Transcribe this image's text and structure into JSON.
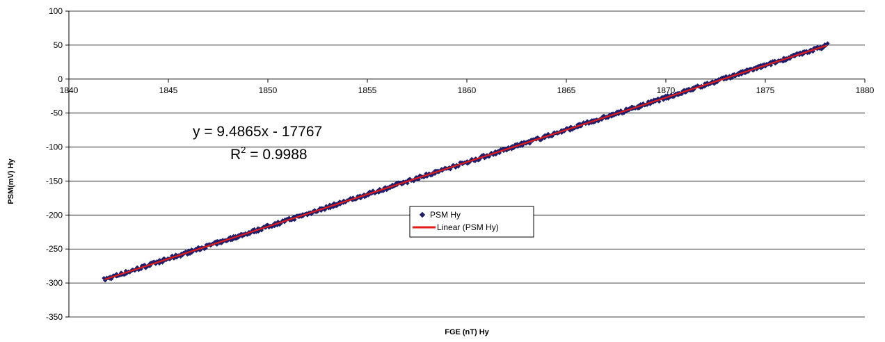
{
  "chart_data": {
    "type": "scatter",
    "xlabel": "FGE (nT) Hy",
    "ylabel": "PSM(mV) Hy",
    "xlim": [
      1840,
      1880
    ],
    "ylim": [
      -350,
      100
    ],
    "x_ticks": [
      "1840",
      "1845",
      "1850",
      "1855",
      "1860",
      "1865",
      "1870",
      "1875",
      "1880"
    ],
    "y_ticks": [
      "100",
      "50",
      "0",
      "-50",
      "-100",
      "-150",
      "-200",
      "-250",
      "-300",
      "-350"
    ],
    "grid": "horizontal",
    "series": [
      {
        "name": "PSM Hy",
        "kind": "points",
        "color": "#1f1f6e",
        "x_range": [
          1841.8,
          1878.1
        ],
        "approx_relation": "y ≈ 9.4865x - 17767",
        "sample_points": [
          {
            "x": 1841.8,
            "y": -295
          },
          {
            "x": 1845,
            "y": -265
          },
          {
            "x": 1850,
            "y": -218
          },
          {
            "x": 1855,
            "y": -170
          },
          {
            "x": 1860,
            "y": -123
          },
          {
            "x": 1865,
            "y": -75
          },
          {
            "x": 1870,
            "y": -28
          },
          {
            "x": 1875,
            "y": 20
          },
          {
            "x": 1878.1,
            "y": 49
          }
        ]
      },
      {
        "name": "Linear (PSM Hy)",
        "kind": "trendline",
        "color": "#e41b17",
        "slope": 9.4865,
        "intercept": -17767,
        "x_range": [
          1841.8,
          1878.1
        ]
      }
    ],
    "annotations": {
      "equation": "y = 9.4865x - 17767",
      "r2_prefix": "R",
      "r2_sup": "2",
      "r2_value": " = 0.9988"
    },
    "legend": {
      "placement": "center",
      "entries": [
        "PSM Hy",
        "Linear (PSM Hy)"
      ]
    }
  }
}
